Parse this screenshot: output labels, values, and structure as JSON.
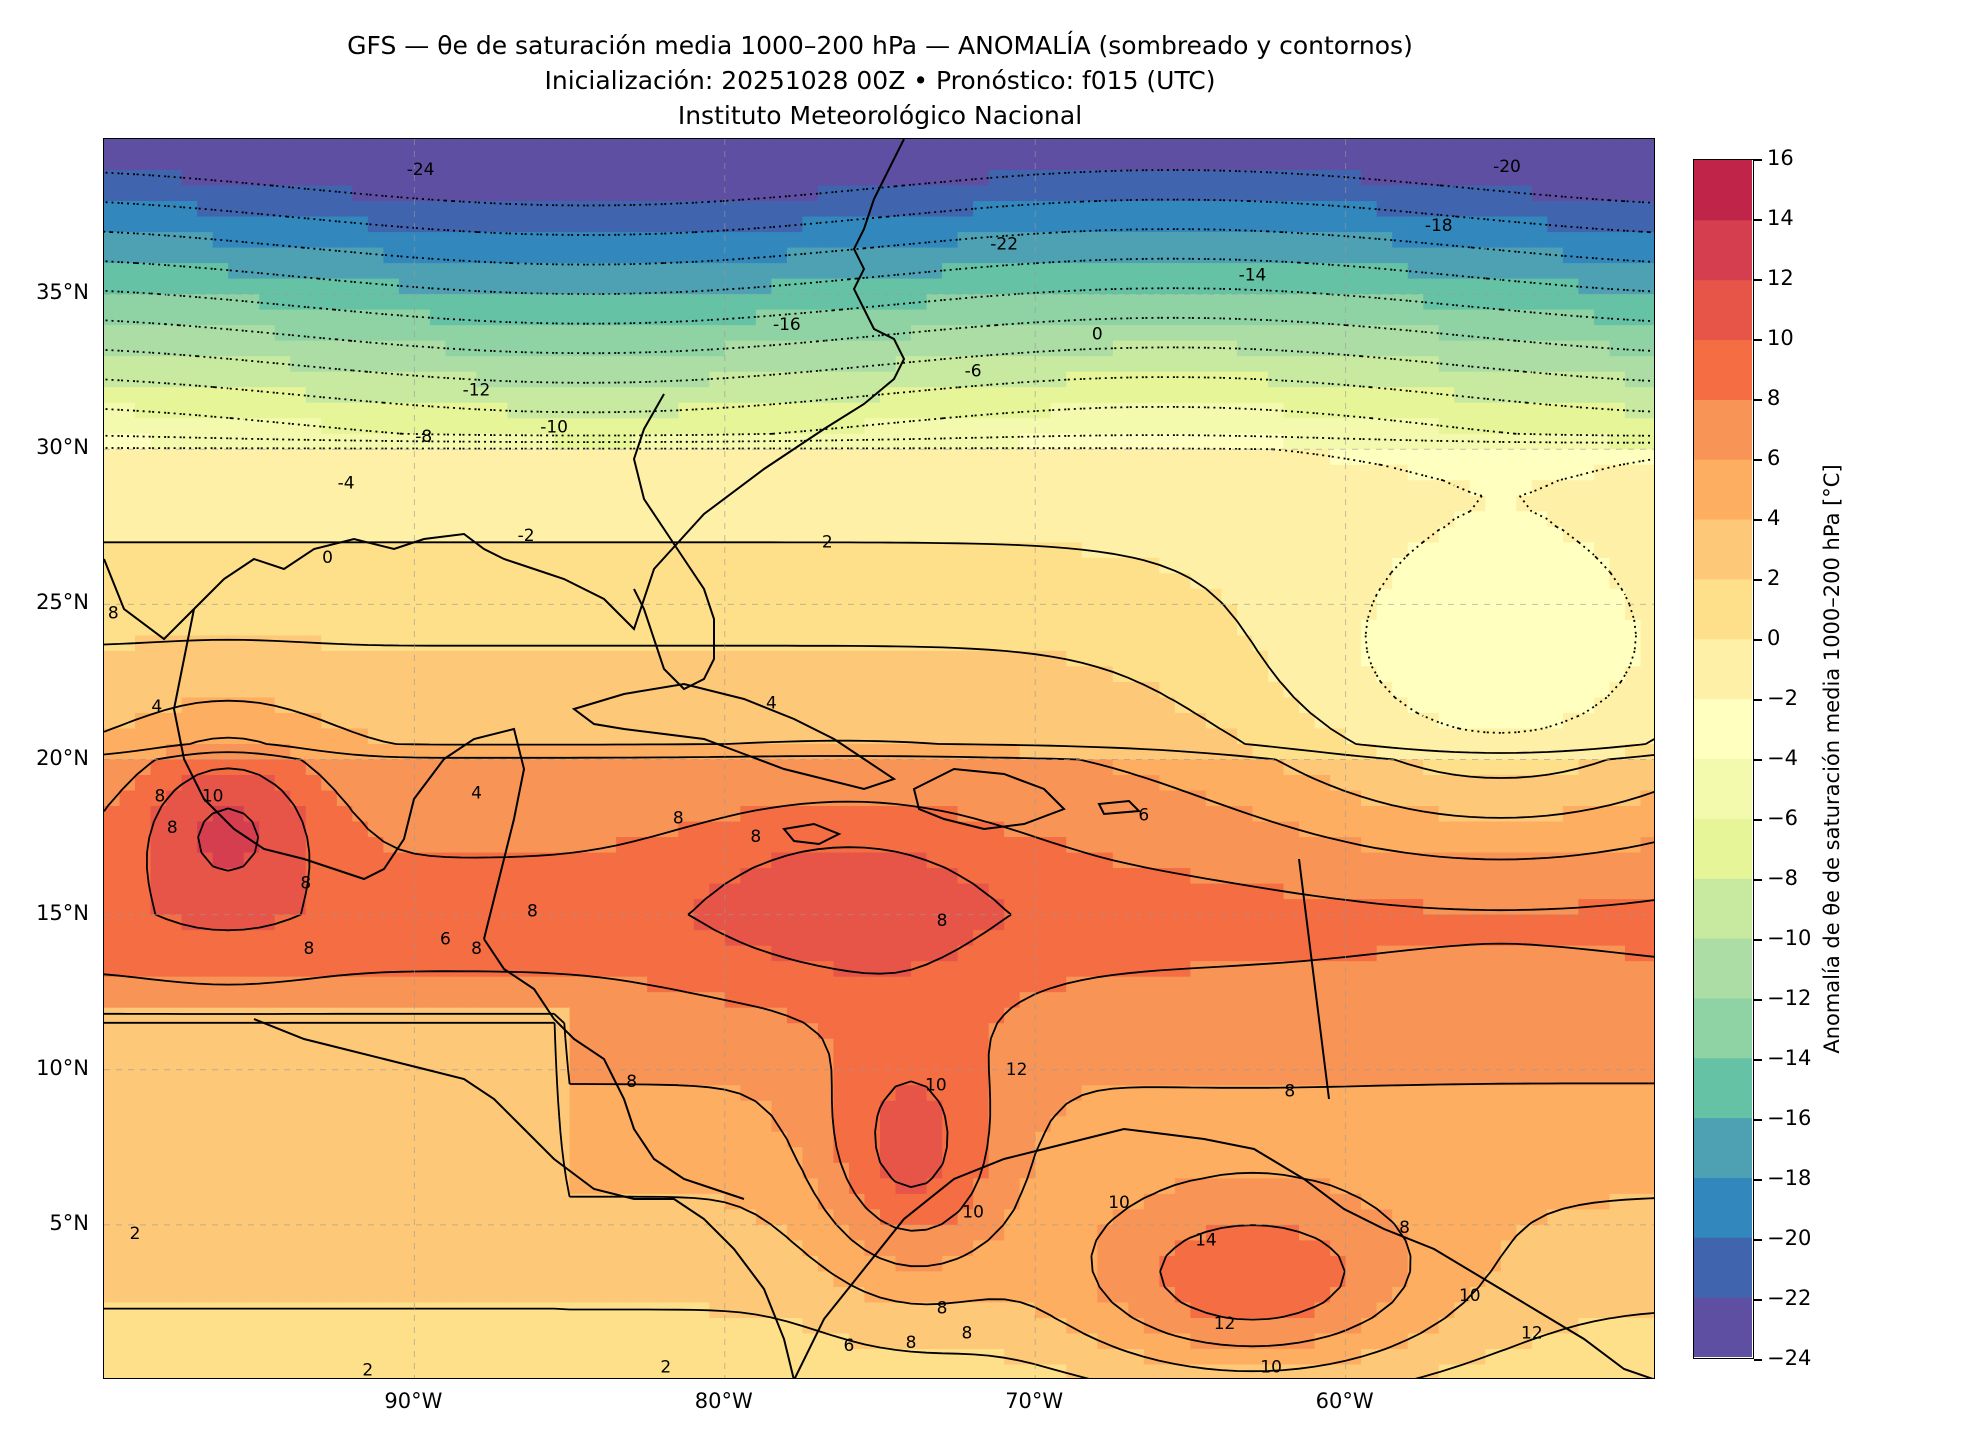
{
  "header": {
    "title": "GFS — θe de saturación media 1000–200 hPa — ANOMALÍA (sombreado y contornos)",
    "subtitle": "Inicialización: 20251028 00Z   •   Pronóstico: f015 (UTC)",
    "institution": "Instituto Meteorológico Nacional"
  },
  "map": {
    "extent": {
      "lon_min": -100,
      "lon_max": -50,
      "lat_min": 0,
      "lat_max": 40
    },
    "lat_ticks": [
      {
        "value": 35,
        "label": "35°N"
      },
      {
        "value": 30,
        "label": "30°N"
      },
      {
        "value": 25,
        "label": "25°N"
      },
      {
        "value": 20,
        "label": "20°N"
      },
      {
        "value": 15,
        "label": "15°N"
      },
      {
        "value": 10,
        "label": "10°N"
      },
      {
        "value": 5,
        "label": "5°N"
      }
    ],
    "lon_ticks": [
      {
        "value": -90,
        "label": "90°W"
      },
      {
        "value": -80,
        "label": "80°W"
      },
      {
        "value": -70,
        "label": "70°W"
      },
      {
        "value": -60,
        "label": "60°W"
      }
    ],
    "contour_labels": [
      {
        "text": "-24",
        "lon": -89.8,
        "lat": 39.0
      },
      {
        "text": "-20",
        "lon": -54.8,
        "lat": 39.1
      },
      {
        "text": "-18",
        "lon": -57.0,
        "lat": 37.2
      },
      {
        "text": "-22",
        "lon": -71.0,
        "lat": 36.6
      },
      {
        "text": "-14",
        "lon": -63.0,
        "lat": 35.6
      },
      {
        "text": "-16",
        "lon": -78.0,
        "lat": 34.0
      },
      {
        "text": "-12",
        "lon": -88.0,
        "lat": 31.9
      },
      {
        "text": "-10",
        "lon": -85.5,
        "lat": 30.7
      },
      {
        "text": "-8",
        "lon": -89.7,
        "lat": 30.4
      },
      {
        "text": "-6",
        "lon": -72.0,
        "lat": 32.5
      },
      {
        "text": "0",
        "lon": -68.0,
        "lat": 33.7
      },
      {
        "text": "-4",
        "lon": -92.2,
        "lat": 28.9
      },
      {
        "text": "-2",
        "lon": -86.4,
        "lat": 27.2
      },
      {
        "text": "0",
        "lon": -92.8,
        "lat": 26.5
      },
      {
        "text": "2",
        "lon": -76.7,
        "lat": 27.0
      },
      {
        "text": "8",
        "lon": -99.7,
        "lat": 24.7
      },
      {
        "text": "4",
        "lon": -98.3,
        "lat": 21.7
      },
      {
        "text": "4",
        "lon": -78.5,
        "lat": 21.8
      },
      {
        "text": "4",
        "lon": -88.0,
        "lat": 18.9
      },
      {
        "text": "8",
        "lon": -98.2,
        "lat": 18.8
      },
      {
        "text": "8",
        "lon": -97.8,
        "lat": 17.8
      },
      {
        "text": "10",
        "lon": -96.5,
        "lat": 18.8
      },
      {
        "text": "8",
        "lon": -93.5,
        "lat": 16.0
      },
      {
        "text": "8",
        "lon": -86.2,
        "lat": 15.1
      },
      {
        "text": "8",
        "lon": -93.4,
        "lat": 13.9
      },
      {
        "text": "6",
        "lon": -89.0,
        "lat": 14.2
      },
      {
        "text": "8",
        "lon": -88.0,
        "lat": 13.9
      },
      {
        "text": "8",
        "lon": -81.5,
        "lat": 18.1
      },
      {
        "text": "8",
        "lon": -79.0,
        "lat": 17.5
      },
      {
        "text": "8",
        "lon": -73.0,
        "lat": 14.8
      },
      {
        "text": "6",
        "lon": -66.5,
        "lat": 18.2
      },
      {
        "text": "8",
        "lon": -83.0,
        "lat": 9.6
      },
      {
        "text": "10",
        "lon": -73.2,
        "lat": 9.5
      },
      {
        "text": "12",
        "lon": -70.6,
        "lat": 10.0
      },
      {
        "text": "8",
        "lon": -61.8,
        "lat": 9.3
      },
      {
        "text": "10",
        "lon": -72.0,
        "lat": 5.4
      },
      {
        "text": "10",
        "lon": -67.3,
        "lat": 5.7
      },
      {
        "text": "14",
        "lon": -64.5,
        "lat": 4.5
      },
      {
        "text": "8",
        "lon": -58.1,
        "lat": 4.9
      },
      {
        "text": "10",
        "lon": -56.0,
        "lat": 2.7
      },
      {
        "text": "12",
        "lon": -54.0,
        "lat": 1.5
      },
      {
        "text": "12",
        "lon": -63.9,
        "lat": 1.8
      },
      {
        "text": "10",
        "lon": -62.4,
        "lat": 0.4
      },
      {
        "text": "8",
        "lon": -74.0,
        "lat": 1.2
      },
      {
        "text": "8",
        "lon": -73.0,
        "lat": 2.3
      },
      {
        "text": "8",
        "lon": -72.2,
        "lat": 1.5
      },
      {
        "text": "6",
        "lon": -76.0,
        "lat": 1.1
      },
      {
        "text": "2",
        "lon": -99.0,
        "lat": 4.7
      },
      {
        "text": "2",
        "lon": -91.5,
        "lat": 0.3
      },
      {
        "text": "2",
        "lon": -81.9,
        "lat": 0.4
      }
    ]
  },
  "colorbar": {
    "label": "Anomalía de θe de saturación media 1000–200 hPa [°C]",
    "min": -24,
    "max": 16,
    "step": 2,
    "tick_labels": [
      "16",
      "14",
      "12",
      "10",
      "8",
      "6",
      "4",
      "2",
      "0",
      "−2",
      "−4",
      "−6",
      "−8",
      "−10",
      "−12",
      "−14",
      "−16",
      "−18",
      "−20",
      "−22",
      "−24"
    ],
    "colors": [
      "#5e4fa2",
      "#4065ae",
      "#3288bd",
      "#4ea1b3",
      "#66c2a5",
      "#8fd3a4",
      "#abdda4",
      "#c8e9a0",
      "#e6f598",
      "#f3faad",
      "#ffffbf",
      "#fef0a6",
      "#fee08b",
      "#fdc877",
      "#fdae61",
      "#f89556",
      "#f46d43",
      "#e65548",
      "#d53e4f",
      "#c02448",
      "#9e0142"
    ]
  },
  "contour_values": [
    -24,
    -22,
    -20,
    -18,
    -16,
    -14,
    -12,
    -10,
    -8,
    -6,
    -4,
    -2,
    0,
    2,
    4,
    6,
    8,
    10,
    12,
    14
  ]
}
